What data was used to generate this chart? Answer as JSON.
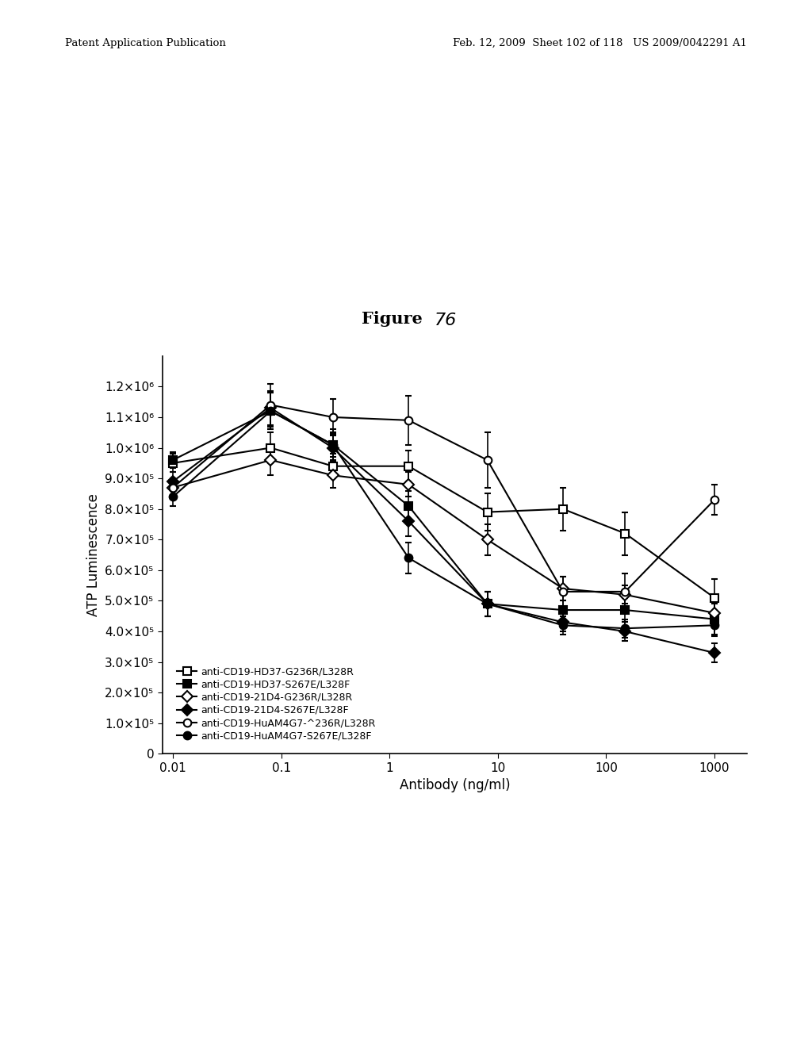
{
  "title_part1": "Figure",
  "title_part2": "76",
  "xlabel": "Antibody (ng/ml)",
  "ylabel": "ATP Luminescence",
  "x_values": [
    0.01,
    0.08,
    0.3,
    1.5,
    8,
    40,
    150,
    1000
  ],
  "series": [
    {
      "label": "anti-CD19-HD37-G236R/L328R",
      "marker": "s",
      "fillstyle": "none",
      "color": "black",
      "y": [
        950000,
        1000000,
        940000,
        940000,
        790000,
        800000,
        720000,
        510000
      ],
      "yerr": [
        30000,
        50000,
        40000,
        50000,
        60000,
        70000,
        70000,
        60000
      ]
    },
    {
      "label": "anti-CD19-HD37-S267E/L328F",
      "marker": "s",
      "fillstyle": "full",
      "color": "black",
      "y": [
        960000,
        1120000,
        1010000,
        810000,
        490000,
        470000,
        470000,
        440000
      ],
      "yerr": [
        25000,
        60000,
        40000,
        50000,
        40000,
        30000,
        40000,
        50000
      ]
    },
    {
      "label": "anti-CD19-21D4-G236R/L328R",
      "marker": "D",
      "fillstyle": "none",
      "color": "black",
      "y": [
        870000,
        960000,
        910000,
        880000,
        700000,
        540000,
        520000,
        460000
      ],
      "yerr": [
        30000,
        50000,
        40000,
        40000,
        50000,
        40000,
        30000,
        40000
      ]
    },
    {
      "label": "anti-CD19-21D4-S267E/L328F",
      "marker": "D",
      "fillstyle": "full",
      "color": "black",
      "y": [
        890000,
        1130000,
        1000000,
        760000,
        490000,
        430000,
        400000,
        330000
      ],
      "yerr": [
        30000,
        55000,
        45000,
        50000,
        40000,
        30000,
        30000,
        30000
      ]
    },
    {
      "label": "anti-CD19-HuAM4G7-^236R/L328R",
      "marker": "o",
      "fillstyle": "none",
      "color": "black",
      "y": [
        870000,
        1140000,
        1100000,
        1090000,
        960000,
        530000,
        530000,
        830000
      ],
      "yerr": [
        30000,
        70000,
        60000,
        80000,
        90000,
        50000,
        60000,
        50000
      ]
    },
    {
      "label": "anti-CD19-HuAM4G7-S267E/L328F",
      "marker": "o",
      "fillstyle": "full",
      "color": "black",
      "y": [
        840000,
        1120000,
        1010000,
        640000,
        490000,
        420000,
        410000,
        420000
      ],
      "yerr": [
        30000,
        60000,
        50000,
        50000,
        40000,
        30000,
        30000,
        35000
      ]
    }
  ],
  "xlim": [
    0.008,
    2000
  ],
  "ylim": [
    0,
    1300000
  ],
  "yticks": [
    0,
    100000,
    200000,
    300000,
    400000,
    500000,
    600000,
    700000,
    800000,
    900000,
    1000000,
    1100000,
    1200000
  ],
  "ytick_labels": [
    "0",
    "1.0×10⁵",
    "2.0×10⁵",
    "3.0×10⁵",
    "4.0×10⁵",
    "5.0×10⁵",
    "6.0×10⁵",
    "7.0×10⁵",
    "8.0×10⁵",
    "9.0×10⁵",
    "1.0×10⁶",
    "1.1×10⁶",
    "1.2×10⁶"
  ],
  "xtick_values": [
    0.01,
    0.1,
    1,
    10,
    100,
    1000
  ],
  "xtick_labels": [
    "0.01",
    "0.1",
    "1",
    "10",
    "100",
    "1000"
  ],
  "background_color": "white",
  "header_text": "Patent Application Publication    Feb. 12, 2009  Sheet 102 of 118   US 2009/0042291 A1",
  "header_left": "Patent Application Publication",
  "header_right": "Feb. 12, 2009  Sheet 102 of 118   US 2009/0042291 A1"
}
